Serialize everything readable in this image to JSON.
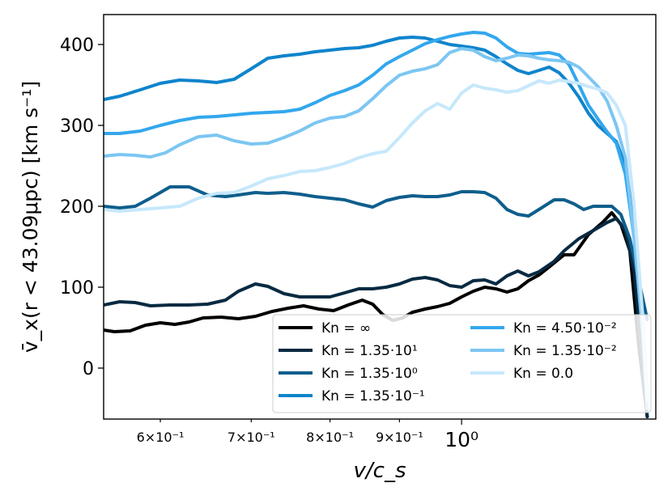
{
  "chart_data": {
    "type": "line",
    "xlabel": "v/c_s",
    "ylabel": "v̄_x(r < 43.09μpc) [km s⁻¹]",
    "xscale": "log",
    "xlim": [
      0.545,
      1.39
    ],
    "ylim": [
      -63,
      437
    ],
    "x_ticks": [
      {
        "value": 0.6,
        "label": "6×10⁻¹",
        "size": "minor"
      },
      {
        "value": 0.7,
        "label": "7×10⁻¹",
        "size": "minor"
      },
      {
        "value": 0.8,
        "label": "8×10⁻¹",
        "size": "minor"
      },
      {
        "value": 0.9,
        "label": "9×10⁻¹",
        "size": "minor"
      },
      {
        "value": 1.0,
        "label": "10⁰",
        "size": "major"
      }
    ],
    "y_ticks": [
      0,
      100,
      200,
      300,
      400
    ],
    "legend": {
      "placement": "lower-right",
      "columns": 2
    },
    "series": [
      {
        "name": "Kn = ∞",
        "color": "#000000",
        "points": [
          [
            0.545,
            47
          ],
          [
            0.555,
            45
          ],
          [
            0.57,
            46
          ],
          [
            0.585,
            53
          ],
          [
            0.6,
            56
          ],
          [
            0.615,
            54
          ],
          [
            0.63,
            57
          ],
          [
            0.645,
            62
          ],
          [
            0.665,
            63
          ],
          [
            0.685,
            61
          ],
          [
            0.705,
            64
          ],
          [
            0.725,
            70
          ],
          [
            0.745,
            74
          ],
          [
            0.765,
            77
          ],
          [
            0.785,
            73
          ],
          [
            0.805,
            71
          ],
          [
            0.825,
            78
          ],
          [
            0.845,
            84
          ],
          [
            0.86,
            79
          ],
          [
            0.875,
            66
          ],
          [
            0.89,
            59
          ],
          [
            0.905,
            62
          ],
          [
            0.92,
            69
          ],
          [
            0.94,
            73
          ],
          [
            0.96,
            76
          ],
          [
            0.98,
            80
          ],
          [
            1.0,
            88
          ],
          [
            1.02,
            95
          ],
          [
            1.04,
            100
          ],
          [
            1.06,
            98
          ],
          [
            1.08,
            94
          ],
          [
            1.1,
            98
          ],
          [
            1.12,
            108
          ],
          [
            1.14,
            115
          ],
          [
            1.16,
            125
          ],
          [
            1.19,
            140
          ],
          [
            1.21,
            140
          ],
          [
            1.24,
            165
          ],
          [
            1.27,
            180
          ],
          [
            1.29,
            192
          ],
          [
            1.31,
            178
          ],
          [
            1.33,
            145
          ],
          [
            1.35,
            30
          ],
          [
            1.37,
            -60
          ]
        ]
      },
      {
        "name": "Kn = 1.35·10¹",
        "color": "#072a42",
        "points": [
          [
            0.545,
            78
          ],
          [
            0.56,
            82
          ],
          [
            0.575,
            81
          ],
          [
            0.59,
            77
          ],
          [
            0.61,
            78
          ],
          [
            0.63,
            78
          ],
          [
            0.65,
            79
          ],
          [
            0.67,
            84
          ],
          [
            0.685,
            95
          ],
          [
            0.705,
            104
          ],
          [
            0.72,
            101
          ],
          [
            0.74,
            92
          ],
          [
            0.76,
            88
          ],
          [
            0.78,
            88
          ],
          [
            0.8,
            88
          ],
          [
            0.82,
            93
          ],
          [
            0.84,
            98
          ],
          [
            0.86,
            98
          ],
          [
            0.88,
            100
          ],
          [
            0.9,
            104
          ],
          [
            0.92,
            110
          ],
          [
            0.94,
            112
          ],
          [
            0.96,
            109
          ],
          [
            0.98,
            102
          ],
          [
            1.0,
            100
          ],
          [
            1.02,
            108
          ],
          [
            1.04,
            109
          ],
          [
            1.06,
            104
          ],
          [
            1.08,
            114
          ],
          [
            1.1,
            120
          ],
          [
            1.12,
            114
          ],
          [
            1.14,
            119
          ],
          [
            1.17,
            132
          ],
          [
            1.19,
            145
          ],
          [
            1.22,
            160
          ],
          [
            1.25,
            170
          ],
          [
            1.28,
            180
          ],
          [
            1.3,
            185
          ],
          [
            1.32,
            170
          ],
          [
            1.34,
            120
          ],
          [
            1.37,
            -60
          ]
        ]
      },
      {
        "name": "Kn = 1.35·10⁰",
        "color": "#0f5e8c",
        "points": [
          [
            0.545,
            200
          ],
          [
            0.56,
            198
          ],
          [
            0.575,
            200
          ],
          [
            0.59,
            210
          ],
          [
            0.61,
            224
          ],
          [
            0.63,
            224
          ],
          [
            0.65,
            214
          ],
          [
            0.67,
            212
          ],
          [
            0.685,
            214
          ],
          [
            0.705,
            217
          ],
          [
            0.72,
            216
          ],
          [
            0.74,
            217
          ],
          [
            0.76,
            215
          ],
          [
            0.78,
            212
          ],
          [
            0.8,
            210
          ],
          [
            0.82,
            208
          ],
          [
            0.84,
            203
          ],
          [
            0.86,
            199
          ],
          [
            0.88,
            207
          ],
          [
            0.9,
            211
          ],
          [
            0.92,
            213
          ],
          [
            0.94,
            212
          ],
          [
            0.96,
            212
          ],
          [
            0.98,
            214
          ],
          [
            1.0,
            218
          ],
          [
            1.02,
            218
          ],
          [
            1.04,
            217
          ],
          [
            1.06,
            210
          ],
          [
            1.08,
            196
          ],
          [
            1.1,
            190
          ],
          [
            1.12,
            188
          ],
          [
            1.14,
            196
          ],
          [
            1.17,
            208
          ],
          [
            1.19,
            208
          ],
          [
            1.21,
            203
          ],
          [
            1.23,
            196
          ],
          [
            1.25,
            200
          ],
          [
            1.27,
            200
          ],
          [
            1.29,
            200
          ],
          [
            1.31,
            190
          ],
          [
            1.33,
            160
          ],
          [
            1.35,
            110
          ],
          [
            1.37,
            60
          ]
        ]
      },
      {
        "name": "Kn = 1.35·10⁻¹",
        "color": "#0f84cc",
        "points": [
          [
            0.545,
            332
          ],
          [
            0.56,
            336
          ],
          [
            0.58,
            344
          ],
          [
            0.6,
            352
          ],
          [
            0.62,
            356
          ],
          [
            0.64,
            355
          ],
          [
            0.66,
            353
          ],
          [
            0.68,
            357
          ],
          [
            0.7,
            370
          ],
          [
            0.72,
            383
          ],
          [
            0.74,
            386
          ],
          [
            0.76,
            388
          ],
          [
            0.78,
            391
          ],
          [
            0.8,
            393
          ],
          [
            0.82,
            395
          ],
          [
            0.84,
            396
          ],
          [
            0.86,
            399
          ],
          [
            0.88,
            404
          ],
          [
            0.9,
            408
          ],
          [
            0.92,
            409
          ],
          [
            0.94,
            408
          ],
          [
            0.96,
            404
          ],
          [
            0.98,
            400
          ],
          [
            1.0,
            398
          ],
          [
            1.02,
            396
          ],
          [
            1.04,
            393
          ],
          [
            1.06,
            385
          ],
          [
            1.08,
            376
          ],
          [
            1.1,
            368
          ],
          [
            1.12,
            364
          ],
          [
            1.14,
            368
          ],
          [
            1.16,
            372
          ],
          [
            1.18,
            365
          ],
          [
            1.2,
            352
          ],
          [
            1.22,
            335
          ],
          [
            1.24,
            315
          ],
          [
            1.26,
            300
          ],
          [
            1.28,
            290
          ],
          [
            1.3,
            280
          ],
          [
            1.32,
            250
          ],
          [
            1.34,
            180
          ],
          [
            1.36,
            60
          ],
          [
            1.37,
            -40
          ]
        ]
      },
      {
        "name": "Kn = 4.50·10⁻²",
        "color": "#33a7ee",
        "points": [
          [
            0.545,
            290
          ],
          [
            0.56,
            290
          ],
          [
            0.58,
            293
          ],
          [
            0.6,
            300
          ],
          [
            0.62,
            306
          ],
          [
            0.64,
            310
          ],
          [
            0.66,
            311
          ],
          [
            0.68,
            313
          ],
          [
            0.7,
            315
          ],
          [
            0.72,
            316
          ],
          [
            0.74,
            317
          ],
          [
            0.76,
            320
          ],
          [
            0.78,
            328
          ],
          [
            0.8,
            337
          ],
          [
            0.82,
            343
          ],
          [
            0.84,
            350
          ],
          [
            0.86,
            362
          ],
          [
            0.88,
            376
          ],
          [
            0.9,
            385
          ],
          [
            0.92,
            393
          ],
          [
            0.94,
            401
          ],
          [
            0.96,
            406
          ],
          [
            0.98,
            410
          ],
          [
            1.0,
            413
          ],
          [
            1.02,
            415
          ],
          [
            1.04,
            414
          ],
          [
            1.06,
            408
          ],
          [
            1.08,
            397
          ],
          [
            1.1,
            389
          ],
          [
            1.12,
            388
          ],
          [
            1.14,
            389
          ],
          [
            1.16,
            390
          ],
          [
            1.18,
            387
          ],
          [
            1.2,
            375
          ],
          [
            1.22,
            350
          ],
          [
            1.24,
            325
          ],
          [
            1.26,
            308
          ],
          [
            1.28,
            292
          ],
          [
            1.3,
            278
          ],
          [
            1.32,
            240
          ],
          [
            1.34,
            160
          ],
          [
            1.36,
            40
          ],
          [
            1.37,
            -50
          ]
        ]
      },
      {
        "name": "Kn = 1.35·10⁻²",
        "color": "#7cc6f2",
        "points": [
          [
            0.545,
            262
          ],
          [
            0.56,
            264
          ],
          [
            0.575,
            263
          ],
          [
            0.59,
            261
          ],
          [
            0.605,
            266
          ],
          [
            0.62,
            276
          ],
          [
            0.64,
            286
          ],
          [
            0.66,
            288
          ],
          [
            0.68,
            281
          ],
          [
            0.7,
            277
          ],
          [
            0.72,
            278
          ],
          [
            0.74,
            285
          ],
          [
            0.76,
            293
          ],
          [
            0.78,
            303
          ],
          [
            0.8,
            309
          ],
          [
            0.82,
            311
          ],
          [
            0.84,
            318
          ],
          [
            0.86,
            333
          ],
          [
            0.88,
            349
          ],
          [
            0.9,
            362
          ],
          [
            0.92,
            367
          ],
          [
            0.94,
            370
          ],
          [
            0.96,
            375
          ],
          [
            0.98,
            390
          ],
          [
            1.0,
            395
          ],
          [
            1.02,
            393
          ],
          [
            1.04,
            385
          ],
          [
            1.06,
            380
          ],
          [
            1.08,
            383
          ],
          [
            1.1,
            387
          ],
          [
            1.12,
            386
          ],
          [
            1.14,
            383
          ],
          [
            1.16,
            381
          ],
          [
            1.18,
            380
          ],
          [
            1.2,
            378
          ],
          [
            1.22,
            372
          ],
          [
            1.24,
            360
          ],
          [
            1.26,
            348
          ],
          [
            1.28,
            330
          ],
          [
            1.3,
            300
          ],
          [
            1.32,
            260
          ],
          [
            1.34,
            160
          ],
          [
            1.36,
            40
          ],
          [
            1.37,
            -50
          ]
        ]
      },
      {
        "name": "Kn = 0.0",
        "color": "#c6e8fb",
        "points": [
          [
            0.545,
            196
          ],
          [
            0.56,
            194
          ],
          [
            0.58,
            196
          ],
          [
            0.6,
            198
          ],
          [
            0.62,
            200
          ],
          [
            0.64,
            210
          ],
          [
            0.66,
            216
          ],
          [
            0.68,
            217
          ],
          [
            0.7,
            225
          ],
          [
            0.72,
            234
          ],
          [
            0.74,
            238
          ],
          [
            0.76,
            243
          ],
          [
            0.78,
            244
          ],
          [
            0.8,
            248
          ],
          [
            0.82,
            253
          ],
          [
            0.84,
            260
          ],
          [
            0.86,
            265
          ],
          [
            0.88,
            268
          ],
          [
            0.9,
            285
          ],
          [
            0.92,
            303
          ],
          [
            0.94,
            318
          ],
          [
            0.96,
            327
          ],
          [
            0.98,
            320
          ],
          [
            1.0,
            340
          ],
          [
            1.02,
            350
          ],
          [
            1.04,
            346
          ],
          [
            1.06,
            344
          ],
          [
            1.08,
            341
          ],
          [
            1.1,
            343
          ],
          [
            1.12,
            349
          ],
          [
            1.14,
            355
          ],
          [
            1.16,
            352
          ],
          [
            1.18,
            356
          ],
          [
            1.2,
            354
          ],
          [
            1.22,
            352
          ],
          [
            1.24,
            348
          ],
          [
            1.26,
            345
          ],
          [
            1.28,
            340
          ],
          [
            1.3,
            325
          ],
          [
            1.32,
            300
          ],
          [
            1.34,
            200
          ],
          [
            1.36,
            60
          ],
          [
            1.37,
            -40
          ]
        ]
      }
    ]
  }
}
